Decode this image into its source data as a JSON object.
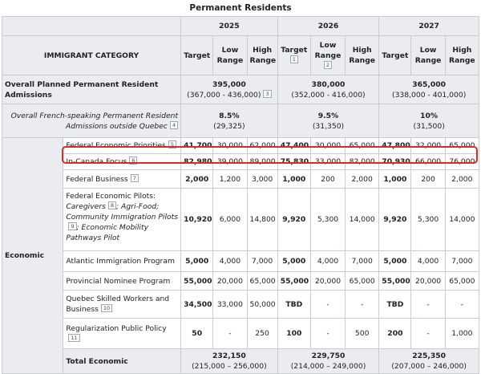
{
  "title": "Permanent Residents",
  "header": {
    "category_label": "IMMIGRANT CATEGORY",
    "years": [
      "2025",
      "2026",
      "2027"
    ],
    "target": "Target",
    "low": "Low Range",
    "high": "High Range",
    "ref_2026_target": "1",
    "ref_2026_low": "2"
  },
  "overall": {
    "label": "Overall Planned Permanent Resident Admissions",
    "ref": "3",
    "values": [
      {
        "total": "395,000",
        "range": "(367,000 - 436,000)"
      },
      {
        "total": "380,000",
        "range": "(352,000 - 416,000)"
      },
      {
        "total": "365,000",
        "range": "(338,000 - 401,000)"
      }
    ]
  },
  "french": {
    "label": "Overall French-speaking Permanent Resident Admissions outside Quebec",
    "ref": "4",
    "values": [
      {
        "total": "8.5%",
        "range": "(29,325)"
      },
      {
        "total": "9.5%",
        "range": "(31,350)"
      },
      {
        "total": "10%",
        "range": "(31,500)"
      }
    ]
  },
  "economic": {
    "group_label": "Economic",
    "rows": [
      {
        "program": "Federal Economic Priorities",
        "ref": "5",
        "cells": [
          "41,700",
          "30,000",
          "62,000",
          "47,400",
          "30,000",
          "65,000",
          "47,800",
          "32,000",
          "65,000"
        ]
      },
      {
        "program": "In-Canada Focus",
        "ref": "6",
        "cells": [
          "82,980",
          "39,000",
          "89,000",
          "75,830",
          "33,000",
          "82,000",
          "70,930",
          "66,000",
          "76,000"
        ]
      },
      {
        "program": "Federal Business",
        "ref": "7",
        "cells": [
          "2,000",
          "1,200",
          "3,000",
          "1,000",
          "200",
          "2,000",
          "1,000",
          "200",
          "2,000"
        ]
      },
      {
        "program_parts": {
          "title": "Federal Economic Pilots:",
          "p1": "Caregivers",
          "ref8": "8",
          "p2": "; Agri-Food;",
          "p3": "Community Immigration Pilots",
          "ref9": "9",
          "p4": "; Economic Mobility Pathways Pilot"
        },
        "cells": [
          "10,920",
          "6,000",
          "14,800",
          "9,920",
          "5,300",
          "14,000",
          "9,920",
          "5,300",
          "14,000"
        ]
      },
      {
        "program": "Atlantic Immigration Program",
        "cells": [
          "5,000",
          "4,000",
          "7,000",
          "5,000",
          "4,000",
          "7,000",
          "5,000",
          "4,000",
          "7,000"
        ]
      },
      {
        "program": "Provincial Nominee Program",
        "cells": [
          "55,000",
          "20,000",
          "65,000",
          "55,000",
          "20,000",
          "65,000",
          "55,000",
          "20,000",
          "65,000"
        ]
      },
      {
        "program": "Quebec Skilled Workers and Business",
        "ref": "10",
        "cells": [
          "34,500",
          "33,000",
          "50,000",
          "TBD",
          "-",
          "-",
          "TBD",
          "-",
          "-"
        ]
      },
      {
        "program": "Regularization Public Policy",
        "ref": "11",
        "cells": [
          "50",
          "-",
          "250",
          "100",
          "-",
          "500",
          "200",
          "-",
          "1,000"
        ]
      }
    ],
    "total": {
      "label": "Total Economic",
      "values": [
        {
          "total": "232,150",
          "range": "(215,000 – 256,000)"
        },
        {
          "total": "229,750",
          "range": "(214,000 – 249,000)"
        },
        {
          "total": "225,350",
          "range": "(207,000 – 246,000)"
        }
      ]
    }
  },
  "highlight_color": "#d42b2b"
}
